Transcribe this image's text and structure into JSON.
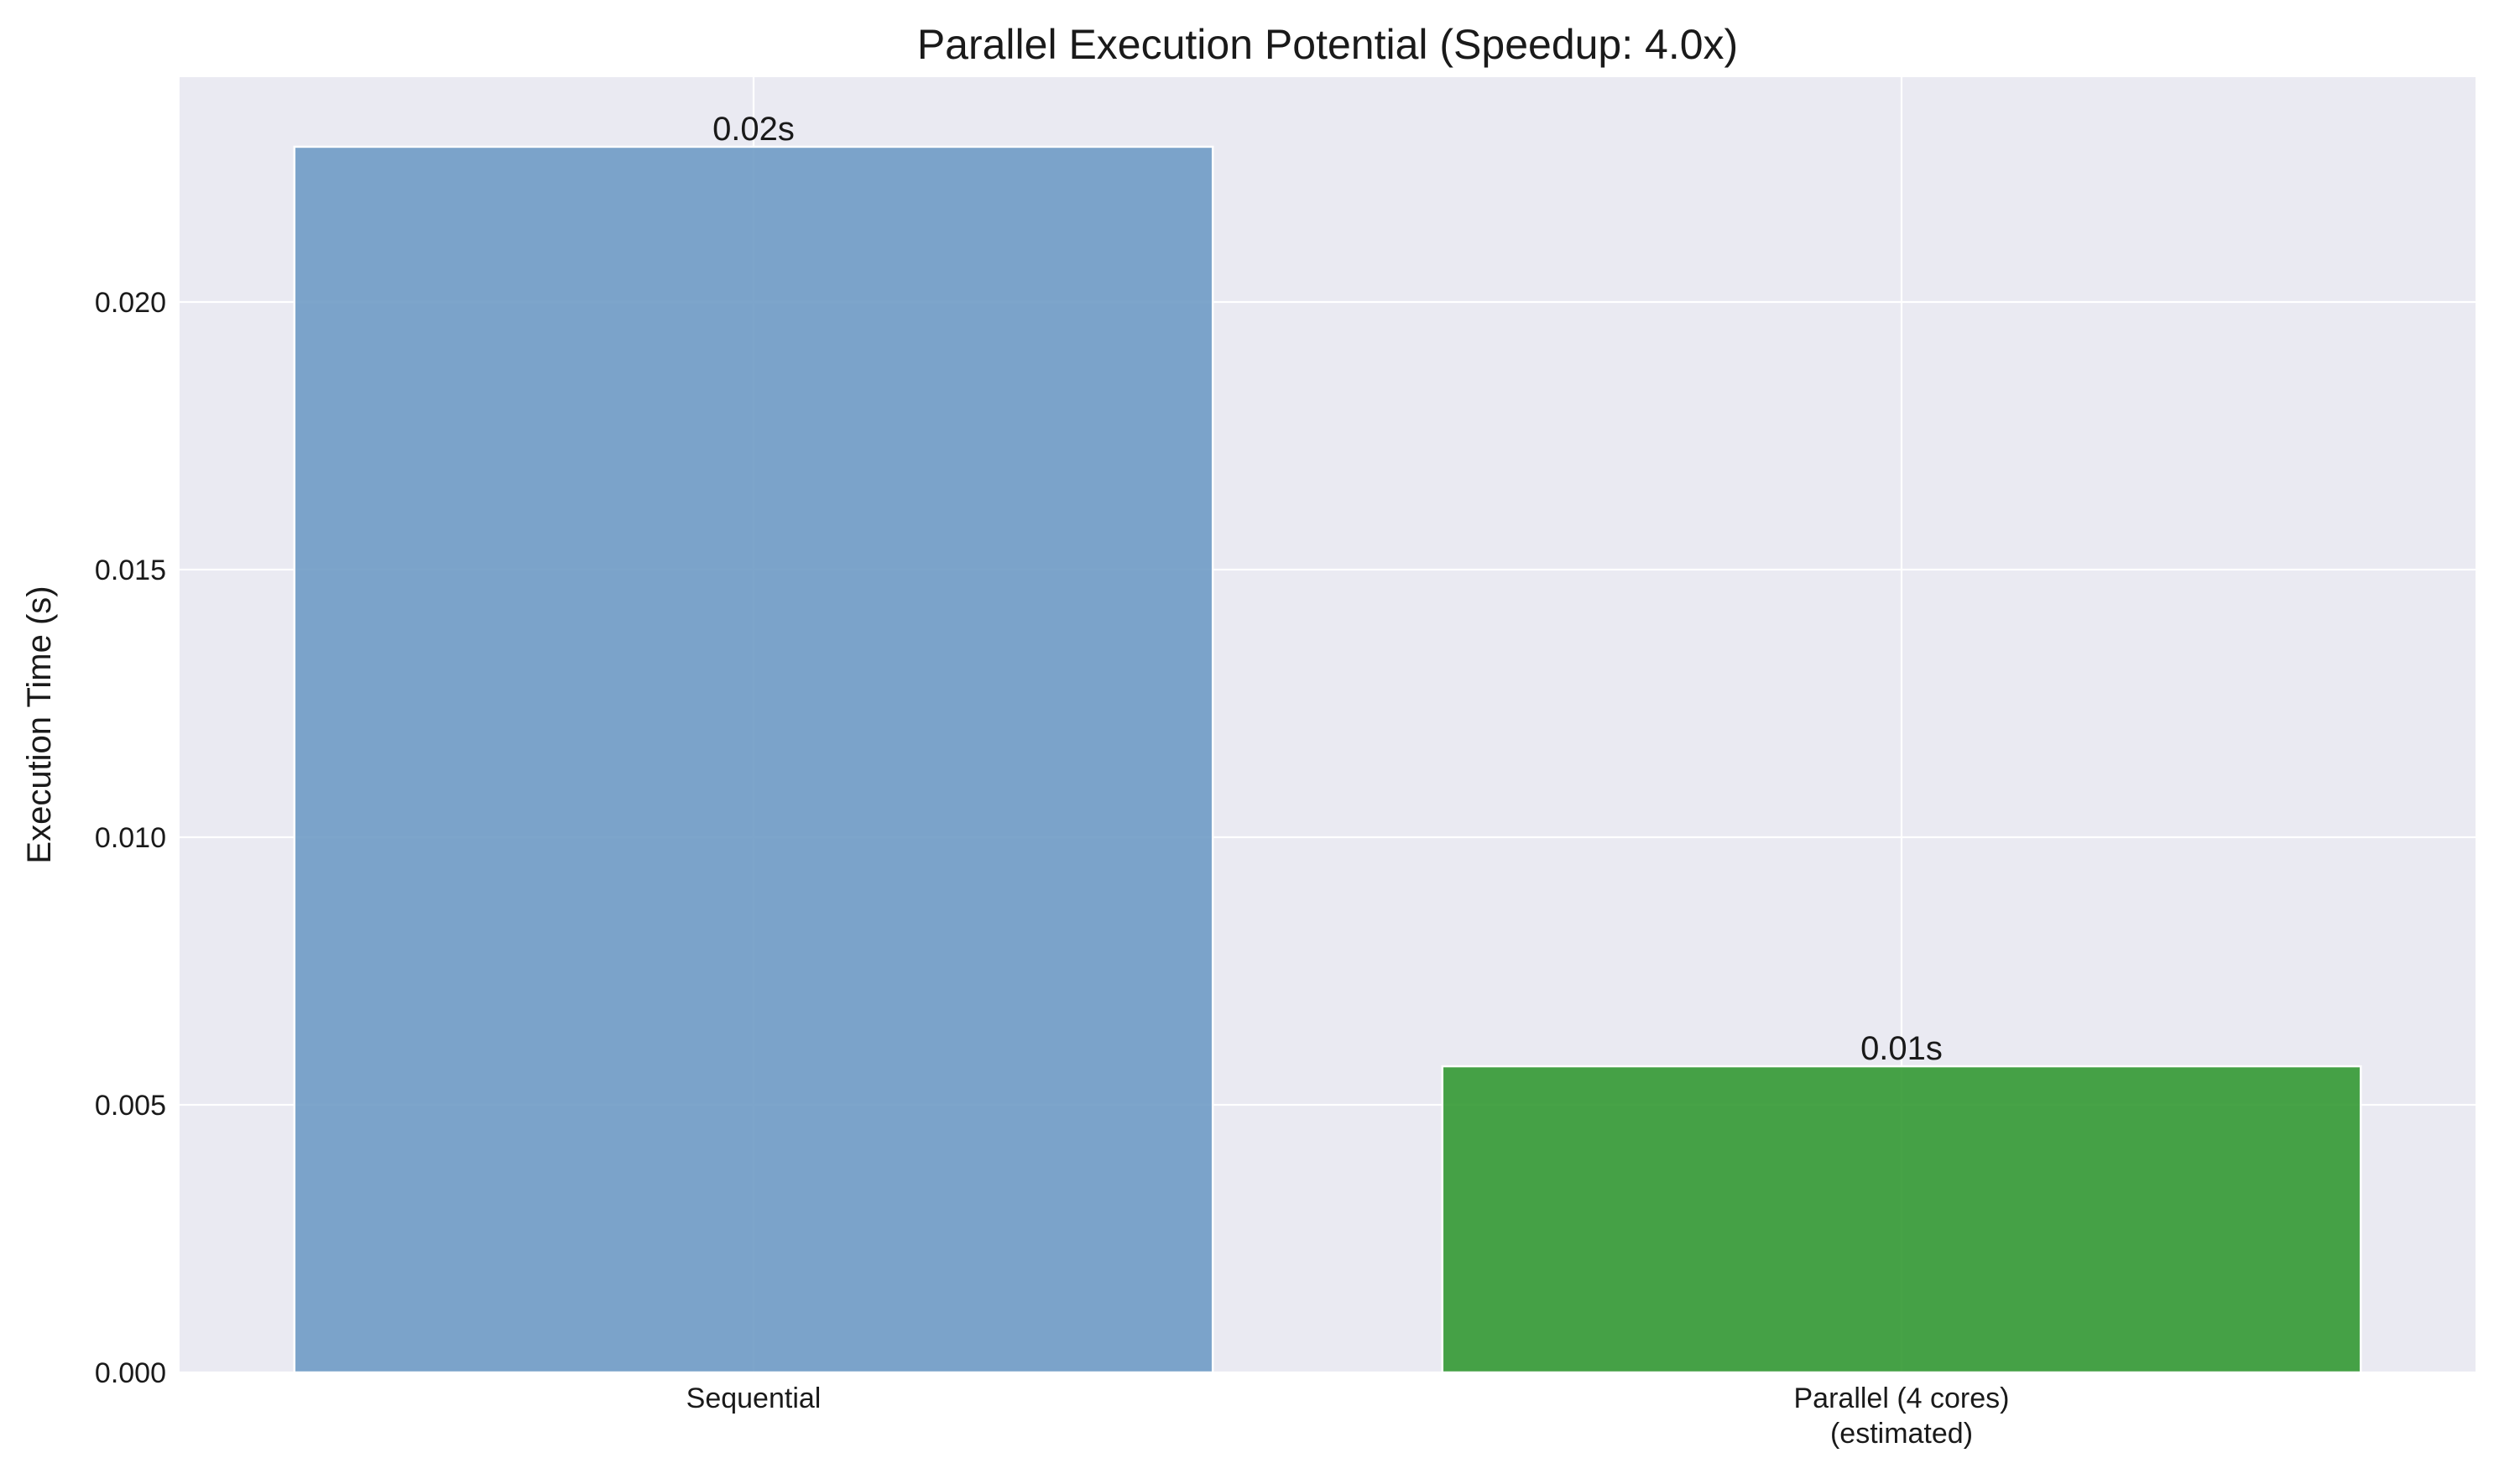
{
  "chart_data": {
    "type": "bar",
    "title": "Parallel Execution Potential (Speedup: 4.0x)",
    "xlabel": "",
    "ylabel": "Execution Time (s)",
    "categories": [
      [
        "Sequential"
      ],
      [
        "Parallel (4 cores)",
        "(estimated)"
      ]
    ],
    "values": [
      0.0229,
      0.00572
    ],
    "value_labels": [
      "0.02s",
      "0.01s"
    ],
    "bar_colors": [
      "#6f9bc5",
      "#339933"
    ],
    "ylim": [
      0,
      0.0242
    ],
    "yticks": [
      0,
      0.005,
      0.01,
      0.015,
      0.02
    ],
    "ytick_labels": [
      "0.000",
      "0.005",
      "0.010",
      "0.015",
      "0.020"
    ],
    "grid": true,
    "background_color": "#eaeaf2",
    "grid_color": "#ffffff"
  }
}
